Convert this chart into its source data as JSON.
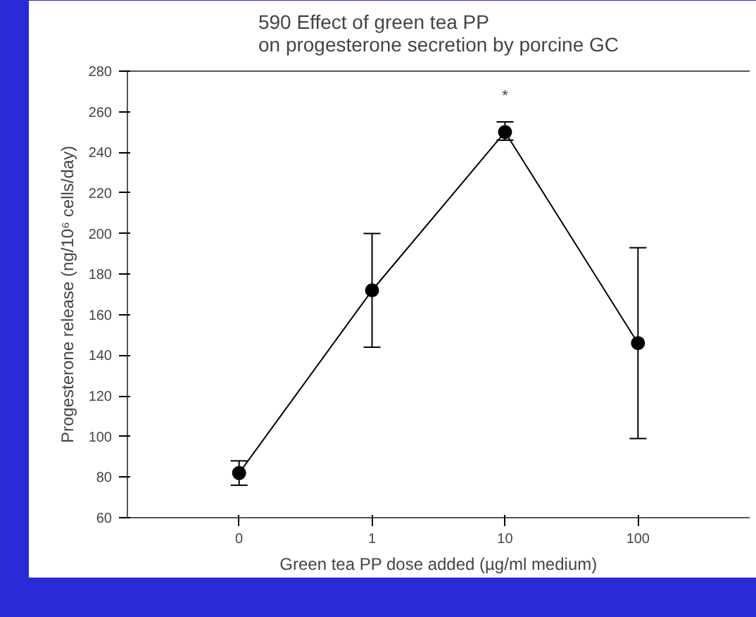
{
  "chart_data": {
    "type": "line",
    "title": "590 Effect of green tea PP\non progesterone secretion by porcine GC",
    "xlabel": "Green tea PP dose added (µg/ml medium)",
    "ylabel": "Progesterone release (ng/10⁶ cells/day)",
    "categories": [
      "0",
      "1",
      "10",
      "100"
    ],
    "series": [
      {
        "color": "#000000",
        "values": [
          82,
          172,
          250,
          146
        ],
        "errors": [
          [
            76,
            88
          ],
          [
            144,
            200
          ],
          [
            246,
            255
          ],
          [
            99,
            193
          ]
        ]
      }
    ],
    "ylim": [
      60,
      280
    ],
    "yticks": [
      60,
      80,
      100,
      120,
      140,
      160,
      180,
      200,
      220,
      240,
      260,
      280
    ],
    "annotations": [
      "*"
    ],
    "grid": false,
    "marker": "circle",
    "line_style": "solid"
  }
}
